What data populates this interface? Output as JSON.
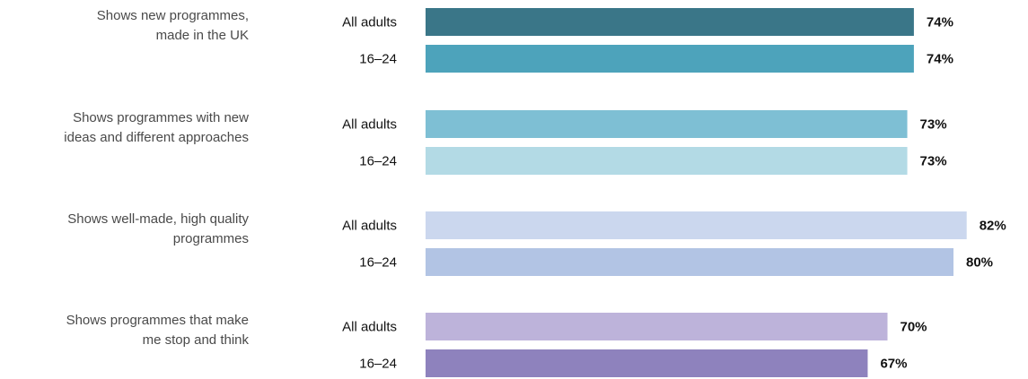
{
  "chart_data": {
    "type": "bar",
    "orientation": "horizontal",
    "categories": [
      "Shows new programmes, made in the UK",
      "Shows programmes with new ideas and different approaches",
      "Shows well-made, high quality programmes",
      "Shows programmes that make me stop and think"
    ],
    "category_lines": [
      [
        "Shows new programmes,",
        "made in the UK"
      ],
      [
        "Shows programmes with new",
        "ideas and different approaches"
      ],
      [
        "Shows well-made, high quality",
        "programmes"
      ],
      [
        "Shows programmes that make",
        "me stop and think"
      ]
    ],
    "series": [
      {
        "name": "All adults",
        "values": [
          74,
          73,
          82,
          70
        ]
      },
      {
        "name": "16–24",
        "values": [
          74,
          73,
          80,
          67
        ]
      }
    ],
    "value_labels": [
      [
        "74%",
        "74%"
      ],
      [
        "73%",
        "73%"
      ],
      [
        "82%",
        "80%"
      ],
      [
        "70%",
        "67%"
      ]
    ],
    "colors": [
      [
        "#3a7688",
        "#4da3bb"
      ],
      [
        "#7ebfd4",
        "#b3dae5"
      ],
      [
        "#cbd7ee",
        "#b2c4e4"
      ],
      [
        "#bdb3da",
        "#8e82bd"
      ]
    ],
    "unit": "%",
    "xlim": [
      0,
      100
    ],
    "grid": false,
    "legend": "none"
  }
}
